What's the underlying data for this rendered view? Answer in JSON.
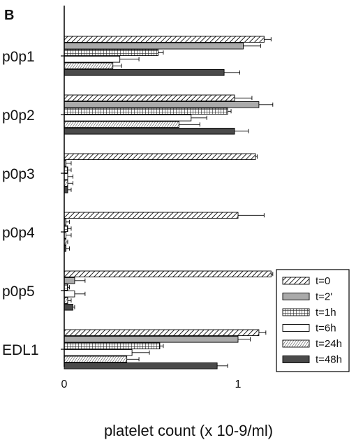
{
  "chart_data": {
    "type": "bar",
    "orientation": "horizontal",
    "panel_label": "B",
    "categories": [
      "p0p1",
      "p0p2",
      "p0p3",
      "p0p4",
      "p0p5",
      "EDL1"
    ],
    "series": [
      {
        "name": "t=0",
        "values": [
          1.15,
          0.98,
          1.1,
          1.0,
          1.19,
          1.12
        ],
        "errors": [
          0.04,
          0.1,
          0.01,
          0.15,
          0.01,
          0.04
        ]
      },
      {
        "name": "t=2'",
        "values": [
          1.03,
          1.12,
          0.01,
          0.01,
          0.06,
          1.0
        ],
        "errors": [
          0.1,
          0.08,
          0.03,
          0.02,
          0.06,
          0.07
        ]
      },
      {
        "name": "t=1h",
        "values": [
          0.54,
          0.94,
          0.02,
          0.02,
          0.02,
          0.55
        ],
        "errors": [
          0.03,
          0.02,
          0.02,
          0.02,
          0.01,
          0.02
        ]
      },
      {
        "name": "t=6h",
        "values": [
          0.32,
          0.73,
          0.02,
          0.01,
          0.06,
          0.39
        ],
        "errors": [
          0.11,
          0.09,
          0.03,
          0.03,
          0.06,
          0.1
        ]
      },
      {
        "name": "t=24h",
        "values": [
          0.28,
          0.66,
          0.02,
          0.01,
          0.02,
          0.36
        ],
        "errors": [
          0.05,
          0.12,
          0.03,
          0.01,
          0.02,
          0.07
        ]
      },
      {
        "name": "t=48h",
        "values": [
          0.92,
          0.98,
          0.02,
          0.01,
          0.05,
          0.88
        ],
        "errors": [
          0.09,
          0.08,
          0.02,
          0.02,
          0.01,
          0.06
        ]
      }
    ],
    "xlabel": "platelet count (x 10-9/ml)",
    "xlim": [
      0,
      1.5
    ],
    "xticks": [
      "0",
      "1"
    ],
    "grid": false,
    "legend_position": "bottom-right",
    "fill_styles": [
      "diagonal-hatch",
      "light-gray",
      "crosshatch",
      "white",
      "fine-diagonal-hatch",
      "dark-gray"
    ]
  }
}
